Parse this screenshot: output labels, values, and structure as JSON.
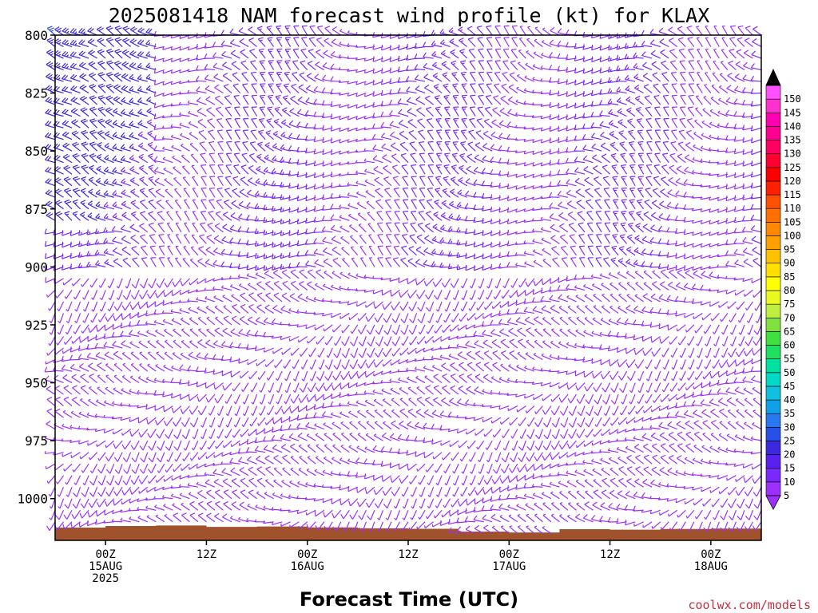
{
  "chart_data": {
    "type": "wind-barb-profile",
    "title": "2025081418 NAM forecast wind profile (kt) for KLAX",
    "xlabel": "Forecast Time (UTC)",
    "ylabel": "",
    "y_axis": {
      "scale": "pressure (hPa), decreasing upward",
      "range": [
        1018,
        800
      ],
      "ticks": [
        "800",
        "825",
        "850",
        "875",
        "900",
        "925",
        "950",
        "975",
        "1000"
      ]
    },
    "x_axis": {
      "ticks": [
        {
          "line1": "00Z",
          "line2": "15AUG",
          "line3": "2025"
        },
        {
          "line1": "12Z",
          "line2": "",
          "line3": ""
        },
        {
          "line1": "00Z",
          "line2": "16AUG",
          "line3": ""
        },
        {
          "line1": "12Z",
          "line2": "",
          "line3": ""
        },
        {
          "line1": "00Z",
          "line2": "17AUG",
          "line3": ""
        },
        {
          "line1": "12Z",
          "line2": "",
          "line3": ""
        },
        {
          "line1": "00Z",
          "line2": "18AUG",
          "line3": ""
        }
      ],
      "forecast_hours_range": [
        0,
        84
      ],
      "step_hours": 1
    },
    "pressure_levels": [
      1015,
      1010,
      1005,
      1000,
      995,
      990,
      985,
      980,
      975,
      970,
      965,
      960,
      955,
      950,
      945,
      940,
      935,
      930,
      925,
      920,
      915,
      910,
      905,
      900,
      895,
      890,
      885,
      880,
      875,
      870,
      865,
      860,
      855,
      850,
      845,
      840,
      835,
      830,
      825,
      820,
      815,
      810,
      805,
      800
    ],
    "color_scale": {
      "unit": "kt",
      "labels": [
        "5",
        "10",
        "15",
        "20",
        "25",
        "30",
        "35",
        "40",
        "45",
        "50",
        "55",
        "60",
        "65",
        "70",
        "75",
        "80",
        "85",
        "90",
        "95",
        "100",
        "105",
        "110",
        "115",
        "120",
        "125",
        "130",
        "135",
        "140",
        "145",
        "150"
      ],
      "colors": [
        "#9b30ff",
        "#7a28ff",
        "#5a20f0",
        "#3c28e0",
        "#2850e8",
        "#2878f0",
        "#10a0e8",
        "#10c0e0",
        "#00d8c8",
        "#00e0a0",
        "#20e060",
        "#40e040",
        "#80e040",
        "#c0ee40",
        "#e8f820",
        "#ffff00",
        "#ffe000",
        "#ffc000",
        "#ffa000",
        "#ff8800",
        "#ff7000",
        "#ff5000",
        "#ff2000",
        "#ff0000",
        "#ff0030",
        "#ff0060",
        "#ff0090",
        "#ff00b0",
        "#ff30d0",
        "#ff50ff"
      ]
    },
    "surface_pressure_hpa": {
      "hours": [
        0,
        6,
        12,
        18,
        24,
        30,
        36,
        42,
        48,
        54,
        60,
        66,
        72,
        78,
        84
      ],
      "pressure": [
        1012.5,
        1011.8,
        1011.6,
        1012.2,
        1012.0,
        1012.4,
        1012.8,
        1013.0,
        1014.2,
        1014.6,
        1013.2,
        1013.4,
        1013.1,
        1012.9,
        1012.0
      ]
    },
    "wind_regimes": [
      {
        "hours": [
          0,
          12
        ],
        "levels": "800-880",
        "speed_kt": 25,
        "direction": "NW/W"
      },
      {
        "hours": [
          12,
          60
        ],
        "levels": "800-900",
        "speed_kt": 10,
        "direction": "W/NW"
      },
      {
        "hours": [
          0,
          84
        ],
        "levels": "900-1015",
        "speed_kt": 8,
        "direction": "W/SW"
      }
    ],
    "grid": false,
    "legend_placement": "right colorbar",
    "surface_color": "#a0522d",
    "barb_color": "#7a28ff"
  },
  "credit": "coolwx.com/models"
}
